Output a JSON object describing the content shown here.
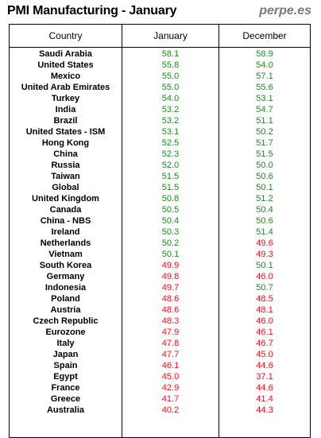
{
  "title": "PMI Manufacturing - January",
  "brand": "perpe.es",
  "colors": {
    "above_50": "#1f8a1f",
    "below_50": "#e8141b"
  },
  "chart_data": {
    "type": "table",
    "title": "PMI Manufacturing - January",
    "columns": [
      "Country",
      "January",
      "December"
    ],
    "threshold": 50,
    "rows": [
      {
        "country": "Saudi Arabia",
        "january": "58.1",
        "december": "58.9"
      },
      {
        "country": "United States",
        "january": "55.8",
        "december": "54.0"
      },
      {
        "country": "Mexico",
        "january": "55.0",
        "december": "57.1"
      },
      {
        "country": "United Arab Emirates",
        "january": "55.0",
        "december": "55.6"
      },
      {
        "country": "Turkey",
        "january": "54.0",
        "december": "53.1"
      },
      {
        "country": "India",
        "january": "53.2",
        "december": "54.7"
      },
      {
        "country": "Brazil",
        "january": "53.2",
        "december": "51.1"
      },
      {
        "country": "United States - ISM",
        "january": "53.1",
        "december": "50.2"
      },
      {
        "country": "Hong Kong",
        "january": "52.5",
        "december": "51.7"
      },
      {
        "country": "China",
        "january": "52.3",
        "december": "51.5"
      },
      {
        "country": "Russia",
        "january": "52.0",
        "december": "50.0"
      },
      {
        "country": "Taiwan",
        "january": "51.5",
        "december": "50.6"
      },
      {
        "country": "Global",
        "january": "51.5",
        "december": "50.1"
      },
      {
        "country": "United Kingdom",
        "january": "50.8",
        "december": "51.2"
      },
      {
        "country": "Canada",
        "january": "50.5",
        "december": "50.4"
      },
      {
        "country": "China - NBS",
        "january": "50.4",
        "december": "50.6"
      },
      {
        "country": "Ireland",
        "january": "50.3",
        "december": "51.4"
      },
      {
        "country": "Netherlands",
        "january": "50.2",
        "december": "49.6"
      },
      {
        "country": "Vietnam",
        "january": "50.1",
        "december": "49.3"
      },
      {
        "country": "South Korea",
        "january": "49.9",
        "december": "50.1"
      },
      {
        "country": "Germany",
        "january": "49.8",
        "december": "46.0"
      },
      {
        "country": "Indonesia",
        "january": "49.7",
        "december": "50.7"
      },
      {
        "country": "Poland",
        "january": "48.6",
        "december": "48.5"
      },
      {
        "country": "Austria",
        "january": "48.6",
        "december": "48.1"
      },
      {
        "country": "Czech Republic",
        "january": "48.3",
        "december": "46.0"
      },
      {
        "country": "Eurozone",
        "january": "47.9",
        "december": "46.1"
      },
      {
        "country": "Italy",
        "january": "47.8",
        "december": "46.7"
      },
      {
        "country": "Japan",
        "january": "47.7",
        "december": "45.0"
      },
      {
        "country": "Spain",
        "january": "46.1",
        "december": "44.6"
      },
      {
        "country": "Egypt",
        "january": "45.0",
        "december": "37.1"
      },
      {
        "country": "France",
        "january": "42.9",
        "december": "44.6"
      },
      {
        "country": "Greece",
        "january": "41.7",
        "december": "41.4"
      },
      {
        "country": "Australia",
        "january": "40.2",
        "december": "44.3"
      }
    ]
  }
}
